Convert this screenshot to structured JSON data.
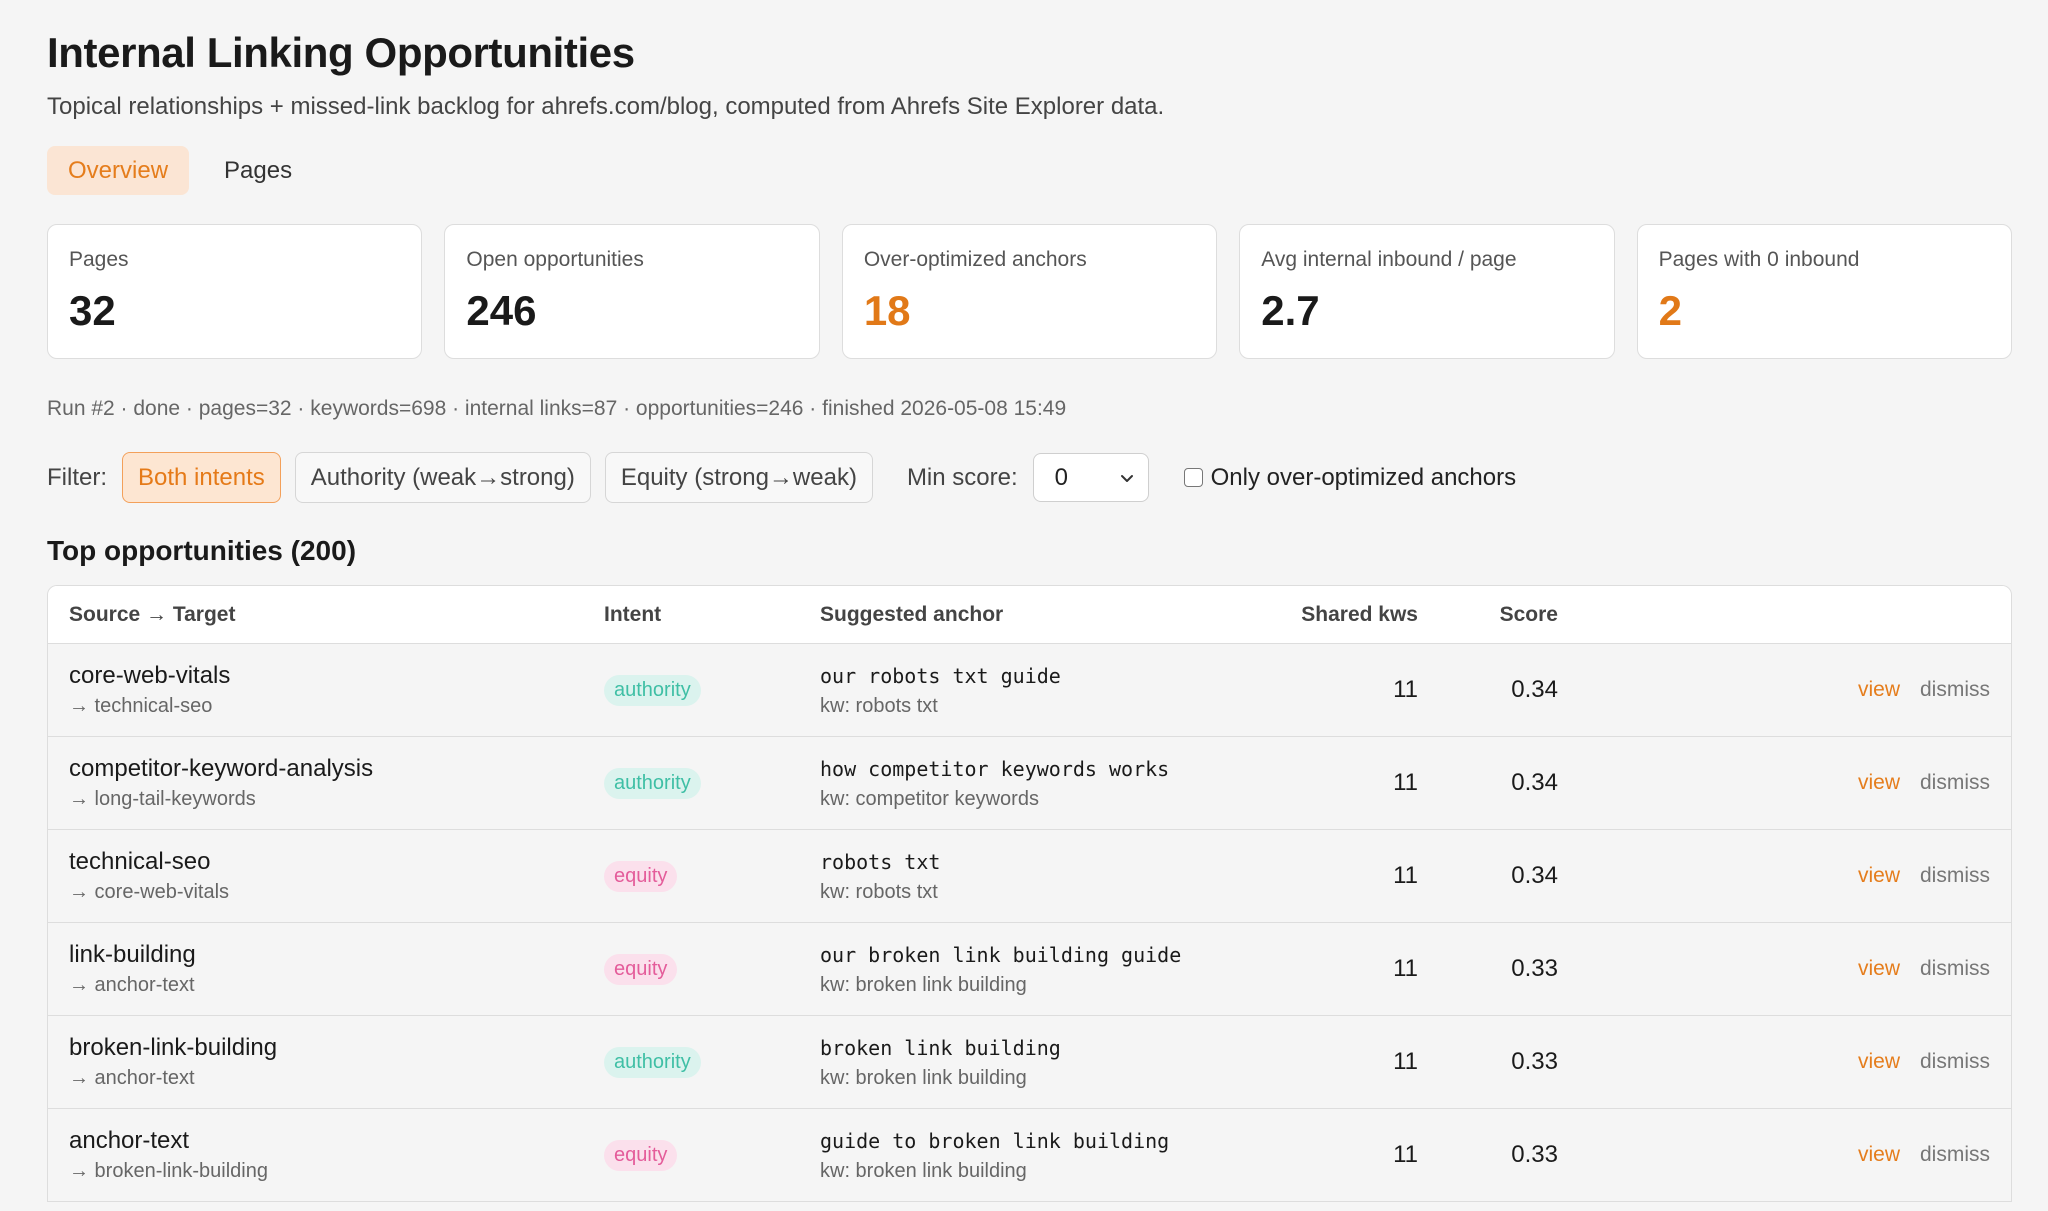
{
  "header": {
    "title": "Internal Linking Opportunities",
    "subtitle": "Topical relationships + missed-link backlog for ahrefs.com/blog, computed from Ahrefs Site Explorer data."
  },
  "tabs": [
    {
      "label": "Overview",
      "active": true
    },
    {
      "label": "Pages",
      "active": false
    }
  ],
  "stats": [
    {
      "label": "Pages",
      "value": "32"
    },
    {
      "label": "Open opportunities",
      "value": "246"
    },
    {
      "label": "Over-optimized anchors",
      "value": "18"
    },
    {
      "label": "Avg internal inbound / page",
      "value": "2.7"
    },
    {
      "label": "Pages with 0 inbound",
      "value": "2"
    }
  ],
  "run_info": "Run #2 · done · pages=32 · keywords=698 · internal links=87 · opportunities=246 · finished 2026-05-08 15:49",
  "filters": {
    "label": "Filter:",
    "chips": [
      "Both intents",
      "Authority (weak→strong)",
      "Equity (strong→weak)"
    ],
    "min_score_label": "Min score:",
    "min_score_value": "0",
    "checkbox_label": "Only over-optimized anchors"
  },
  "table": {
    "heading": "Top opportunities (200)",
    "columns": [
      "Source → Target",
      "Intent",
      "Suggested anchor",
      "Shared kws",
      "Score"
    ],
    "action_view": "view",
    "action_dismiss": "dismiss",
    "rows": [
      {
        "source": "core-web-vitals",
        "target": "→ technical-seo",
        "intent": "authority",
        "anchor": "our robots txt guide",
        "kw": "kw: robots txt",
        "shared": "11",
        "score": "0.34"
      },
      {
        "source": "competitor-keyword-analysis",
        "target": "→ long-tail-keywords",
        "intent": "authority",
        "anchor": "how competitor keywords works",
        "kw": "kw: competitor keywords",
        "shared": "11",
        "score": "0.34"
      },
      {
        "source": "technical-seo",
        "target": "→ core-web-vitals",
        "intent": "equity",
        "anchor": "robots txt",
        "kw": "kw: robots txt",
        "shared": "11",
        "score": "0.34"
      },
      {
        "source": "link-building",
        "target": "→ anchor-text",
        "intent": "equity",
        "anchor": "our broken link building guide",
        "kw": "kw: broken link building",
        "shared": "11",
        "score": "0.33"
      },
      {
        "source": "broken-link-building",
        "target": "→ anchor-text",
        "intent": "authority",
        "anchor": "broken link building",
        "kw": "kw: broken link building",
        "shared": "11",
        "score": "0.33"
      },
      {
        "source": "anchor-text",
        "target": "→ broken-link-building",
        "intent": "equity",
        "anchor": "guide to broken link building",
        "kw": "kw: broken link building",
        "shared": "11",
        "score": "0.33"
      }
    ]
  },
  "colors": {
    "accent": "#e57d1c",
    "authority": "#3fbfa5",
    "equity": "#e45c9a"
  }
}
